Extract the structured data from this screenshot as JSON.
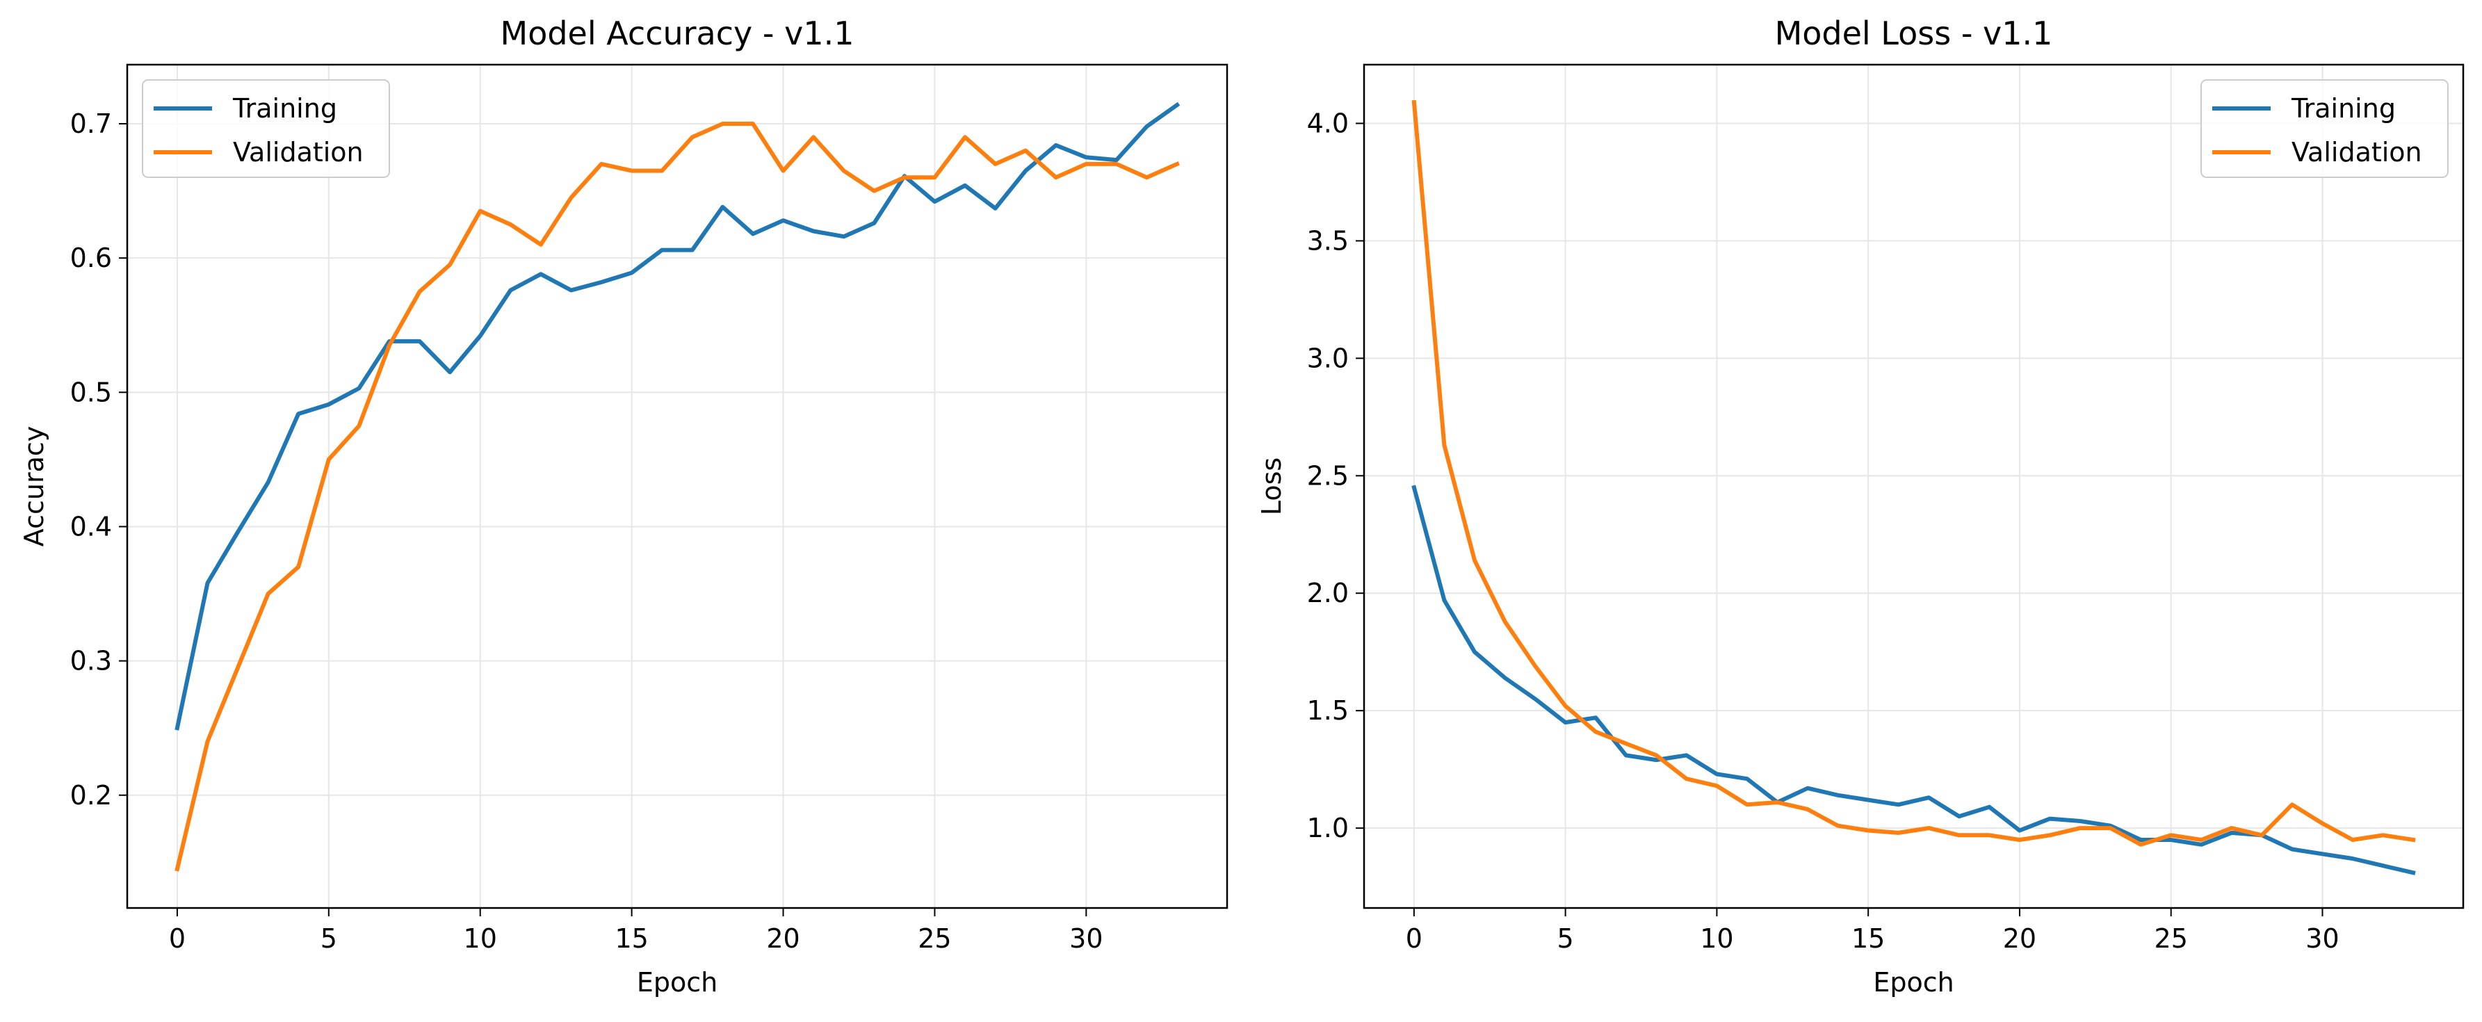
{
  "chart_data": [
    {
      "type": "line",
      "title": "Model Accuracy - v1.1",
      "xlabel": "Epoch",
      "ylabel": "Accuracy",
      "xlim": [
        -1.65,
        34.65
      ],
      "ylim": [
        0.116,
        0.744
      ],
      "xticks": [
        0,
        5,
        10,
        15,
        20,
        25,
        30
      ],
      "xtick_labels": [
        "0",
        "5",
        "10",
        "15",
        "20",
        "25",
        "30"
      ],
      "yticks": [
        0.2,
        0.3,
        0.4,
        0.5,
        0.6,
        0.7
      ],
      "ytick_labels": [
        "0.2",
        "0.3",
        "0.4",
        "0.5",
        "0.6",
        "0.7"
      ],
      "grid": true,
      "legend_position": "upper-left",
      "x": [
        0,
        1,
        2,
        3,
        4,
        5,
        6,
        7,
        8,
        9,
        10,
        11,
        12,
        13,
        14,
        15,
        16,
        17,
        18,
        19,
        20,
        21,
        22,
        23,
        24,
        25,
        26,
        27,
        28,
        29,
        30,
        31,
        32,
        33
      ],
      "series": [
        {
          "name": "Training",
          "color": "#1f77b4",
          "values": [
            0.25,
            0.358,
            0.396,
            0.433,
            0.484,
            0.491,
            0.503,
            0.538,
            0.538,
            0.515,
            0.542,
            0.576,
            0.588,
            0.576,
            0.582,
            0.589,
            0.606,
            0.606,
            0.638,
            0.618,
            0.628,
            0.62,
            0.616,
            0.626,
            0.661,
            0.642,
            0.654,
            0.637,
            0.665,
            0.684,
            0.675,
            0.673,
            0.698,
            0.714
          ]
        },
        {
          "name": "Validation",
          "color": "#ff7f0e",
          "values": [
            0.145,
            0.24,
            0.295,
            0.35,
            0.37,
            0.45,
            0.475,
            0.535,
            0.575,
            0.595,
            0.635,
            0.625,
            0.61,
            0.645,
            0.67,
            0.665,
            0.665,
            0.69,
            0.7,
            0.7,
            0.665,
            0.69,
            0.665,
            0.65,
            0.66,
            0.66,
            0.69,
            0.67,
            0.68,
            0.66,
            0.67,
            0.67,
            0.66,
            0.67
          ]
        }
      ]
    },
    {
      "type": "line",
      "title": "Model Loss - v1.1",
      "xlabel": "Epoch",
      "ylabel": "Loss",
      "xlim": [
        -1.65,
        34.65
      ],
      "ylim": [
        0.66,
        4.25
      ],
      "xticks": [
        0,
        5,
        10,
        15,
        20,
        25,
        30
      ],
      "xtick_labels": [
        "0",
        "5",
        "10",
        "15",
        "20",
        "25",
        "30"
      ],
      "yticks": [
        1.0,
        1.5,
        2.0,
        2.5,
        3.0,
        3.5,
        4.0
      ],
      "ytick_labels": [
        "1.0",
        "1.5",
        "2.0",
        "2.5",
        "3.0",
        "3.5",
        "4.0"
      ],
      "grid": true,
      "legend_position": "upper-right",
      "x": [
        0,
        1,
        2,
        3,
        4,
        5,
        6,
        7,
        8,
        9,
        10,
        11,
        12,
        13,
        14,
        15,
        16,
        17,
        18,
        19,
        20,
        21,
        22,
        23,
        24,
        25,
        26,
        27,
        28,
        29,
        30,
        31,
        32,
        33
      ],
      "series": [
        {
          "name": "Training",
          "color": "#1f77b4",
          "values": [
            2.45,
            1.97,
            1.75,
            1.64,
            1.55,
            1.45,
            1.47,
            1.31,
            1.29,
            1.31,
            1.23,
            1.21,
            1.11,
            1.17,
            1.14,
            1.12,
            1.1,
            1.13,
            1.05,
            1.09,
            0.99,
            1.04,
            1.03,
            1.01,
            0.95,
            0.95,
            0.93,
            0.98,
            0.97,
            0.91,
            0.89,
            0.87,
            0.84,
            0.81
          ]
        },
        {
          "name": "Validation",
          "color": "#ff7f0e",
          "values": [
            4.09,
            2.63,
            2.14,
            1.88,
            1.69,
            1.52,
            1.41,
            1.36,
            1.31,
            1.21,
            1.18,
            1.1,
            1.11,
            1.08,
            1.01,
            0.99,
            0.98,
            1.0,
            0.97,
            0.97,
            0.95,
            0.97,
            1.0,
            1.0,
            0.93,
            0.97,
            0.95,
            1.0,
            0.97,
            1.1,
            1.02,
            0.95,
            0.97,
            0.95
          ]
        }
      ]
    }
  ]
}
